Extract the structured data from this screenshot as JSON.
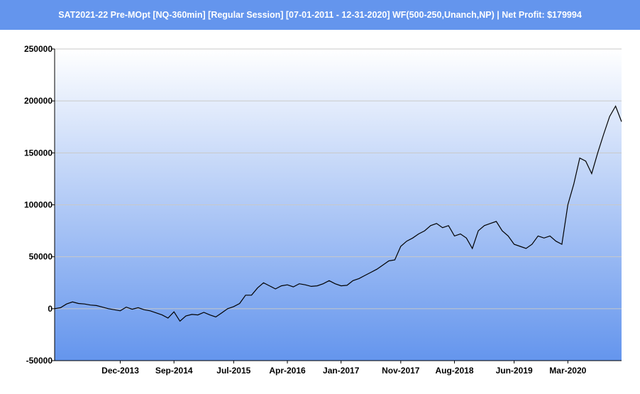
{
  "window": {
    "title": "SAT2021-22 Pre-MOpt [NQ-360min] [Regular Session] [07-01-2011 - 12-31-2020] WF(500-250,Unanch,NP) | Net Profit: $179994"
  },
  "colors": {
    "title_bar": "#6495ed",
    "plot_top": "#ffffff",
    "plot_bottom": "#6495ed",
    "line": "#000000",
    "grid": "#c8c8c8"
  },
  "chart_data": {
    "type": "line",
    "title": "",
    "xlabel": "",
    "ylabel": "",
    "ylim": [
      -50000,
      250000
    ],
    "xlim": [
      "2013-01",
      "2020-12"
    ],
    "grid": true,
    "yticks": [
      250000,
      200000,
      150000,
      100000,
      50000,
      0,
      -50000
    ],
    "ytick_labels": [
      "250000",
      "200000",
      "150000",
      "100000",
      "50000",
      "0",
      "-50000"
    ],
    "xticks": [
      "2013-12",
      "2014-09",
      "2015-07",
      "2016-04",
      "2017-01",
      "2017-11",
      "2018-08",
      "2019-06",
      "2020-03"
    ],
    "xtick_labels": [
      "Dec-2013",
      "Sep-2014",
      "Jul-2015",
      "Apr-2016",
      "Jan-2017",
      "Nov-2017",
      "Aug-2018",
      "Jun-2019",
      "Mar-2020"
    ],
    "series": [
      {
        "name": "",
        "x": [
          "2013-01",
          "2013-02",
          "2013-03",
          "2013-04",
          "2013-05",
          "2013-06",
          "2013-07",
          "2013-08",
          "2013-09",
          "2013-10",
          "2013-11",
          "2013-12",
          "2014-01",
          "2014-02",
          "2014-03",
          "2014-04",
          "2014-05",
          "2014-06",
          "2014-07",
          "2014-08",
          "2014-09",
          "2014-10",
          "2014-11",
          "2014-12",
          "2015-01",
          "2015-02",
          "2015-03",
          "2015-04",
          "2015-05",
          "2015-06",
          "2015-07",
          "2015-08",
          "2015-09",
          "2015-10",
          "2015-11",
          "2015-12",
          "2016-01",
          "2016-02",
          "2016-03",
          "2016-04",
          "2016-05",
          "2016-06",
          "2016-07",
          "2016-08",
          "2016-09",
          "2016-10",
          "2016-11",
          "2016-12",
          "2017-01",
          "2017-02",
          "2017-03",
          "2017-04",
          "2017-05",
          "2017-06",
          "2017-07",
          "2017-08",
          "2017-09",
          "2017-10",
          "2017-11",
          "2017-12",
          "2018-01",
          "2018-02",
          "2018-03",
          "2018-04",
          "2018-05",
          "2018-06",
          "2018-07",
          "2018-08",
          "2018-09",
          "2018-10",
          "2018-11",
          "2018-12",
          "2019-01",
          "2019-02",
          "2019-03",
          "2019-04",
          "2019-05",
          "2019-06",
          "2019-07",
          "2019-08",
          "2019-09",
          "2019-10",
          "2019-11",
          "2019-12",
          "2020-01",
          "2020-02",
          "2020-03",
          "2020-04",
          "2020-05",
          "2020-06",
          "2020-07",
          "2020-08",
          "2020-09",
          "2020-10",
          "2020-11",
          "2020-12"
        ],
        "values": [
          0,
          1000,
          4500,
          6500,
          5000,
          4500,
          3500,
          3000,
          1500,
          0,
          -1000,
          -2000,
          1500,
          -500,
          1000,
          -1000,
          -2000,
          -4000,
          -6000,
          -9000,
          -3000,
          -12000,
          -7000,
          -5500,
          -6000,
          -3500,
          -6000,
          -8000,
          -4000,
          0,
          2000,
          5000,
          13000,
          13000,
          20000,
          25000,
          22000,
          19000,
          22000,
          23000,
          21000,
          24000,
          23000,
          21500,
          22000,
          24000,
          27000,
          24000,
          22000,
          22500,
          27000,
          29000,
          32000,
          35000,
          38000,
          42000,
          46000,
          47000,
          60000,
          65000,
          68000,
          72000,
          75000,
          80000,
          82000,
          78000,
          80000,
          70000,
          72000,
          68000,
          58000,
          75000,
          80000,
          82000,
          84000,
          75000,
          70000,
          62000,
          60000,
          58000,
          62000,
          70000,
          68000,
          70000,
          65000,
          62000,
          100000,
          120000,
          145000,
          142000,
          130000,
          150000,
          168000,
          185000,
          195000,
          180000
        ]
      }
    ]
  }
}
